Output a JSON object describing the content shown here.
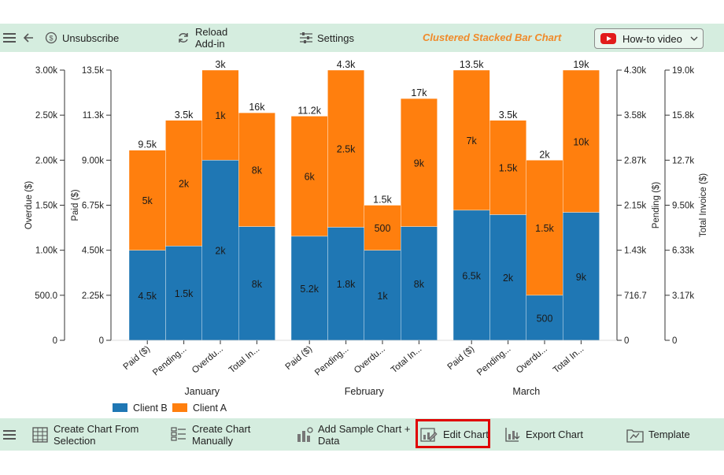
{
  "toolbar": {
    "unsubscribe": "Unsubscribe",
    "reload_line1": "Reload",
    "reload_line2": "Add-in",
    "settings": "Settings",
    "chart_title": "Clustered Stacked Bar Chart",
    "howto": "How-to video"
  },
  "bottom_toolbar": {
    "create_selection_line1": "Create Chart From",
    "create_selection_line2": "Selection",
    "create_manual_line1": "Create Chart",
    "create_manual_line2": "Manually",
    "add_sample_line1": "Add Sample Chart +",
    "add_sample_line2": "Data",
    "edit_chart": "Edit Chart",
    "export_chart": "Export Chart",
    "template": "Template"
  },
  "colors": {
    "client_b": "#1f77b4",
    "client_a": "#ff7f0e",
    "toolbar_bg": "#d5eddf",
    "title": "#f08a2a"
  },
  "chart_data": {
    "type": "bar",
    "stacked": true,
    "clustered": true,
    "groups": [
      "January",
      "February",
      "March"
    ],
    "categories": [
      "Paid ($)",
      "Pending...",
      "Overdu...",
      "Total In..."
    ],
    "series": [
      {
        "name": "Client B",
        "color": "#1f77b4",
        "labels": [
          [
            "4.5k",
            "1.5k",
            "2k",
            "8k"
          ],
          [
            "5.2k",
            "1.8k",
            "1k",
            "8k"
          ],
          [
            "6.5k",
            "2k",
            "500",
            "9k"
          ]
        ],
        "values": [
          [
            4500,
            1500,
            2000,
            8000
          ],
          [
            5200,
            1800,
            1000,
            8000
          ],
          [
            6500,
            2000,
            500,
            9000
          ]
        ]
      },
      {
        "name": "Client A",
        "color": "#ff7f0e",
        "labels": [
          [
            "5k",
            "2k",
            "1k",
            "8k"
          ],
          [
            "6k",
            "2.5k",
            "500",
            "9k"
          ],
          [
            "7k",
            "1.5k",
            "1.5k",
            "10k"
          ]
        ],
        "values": [
          [
            5000,
            2000,
            1000,
            8000
          ],
          [
            6000,
            2500,
            500,
            9000
          ],
          [
            7000,
            1500,
            1500,
            10000
          ]
        ]
      }
    ],
    "totals": [
      [
        "9.5k",
        "3.5k",
        "3k",
        "16k"
      ],
      [
        "11.2k",
        "4.3k",
        "1.5k",
        "17k"
      ],
      [
        "13.5k",
        "3.5k",
        "2k",
        "19k"
      ]
    ],
    "axes": [
      {
        "label": "Overdue ($)",
        "max": 3000,
        "ticks": [
          "0",
          "500.0",
          "1.00k",
          "1.50k",
          "2.00k",
          "2.50k",
          "3.00k"
        ],
        "side": "left"
      },
      {
        "label": "Paid ($)",
        "max": 13500,
        "ticks": [
          "0",
          "2.25k",
          "4.50k",
          "6.75k",
          "9.00k",
          "11.3k",
          "13.5k"
        ],
        "side": "left"
      },
      {
        "label": "Pending ($)",
        "max": 4300,
        "ticks": [
          "0",
          "716.7",
          "1.43k",
          "2.15k",
          "2.87k",
          "3.58k",
          "4.30k"
        ],
        "side": "right"
      },
      {
        "label": "Total Invoice ($)",
        "max": 19000,
        "ticks": [
          "0",
          "3.17k",
          "6.33k",
          "9.50k",
          "12.7k",
          "15.8k",
          "19.0k"
        ],
        "side": "right"
      }
    ],
    "category_axis": {
      "Paid ($)": 1,
      "Pending...": 2,
      "Overdu...": 0,
      "Total In...": 3
    },
    "legend": {
      "position": "bottom-left"
    },
    "grid": false
  }
}
